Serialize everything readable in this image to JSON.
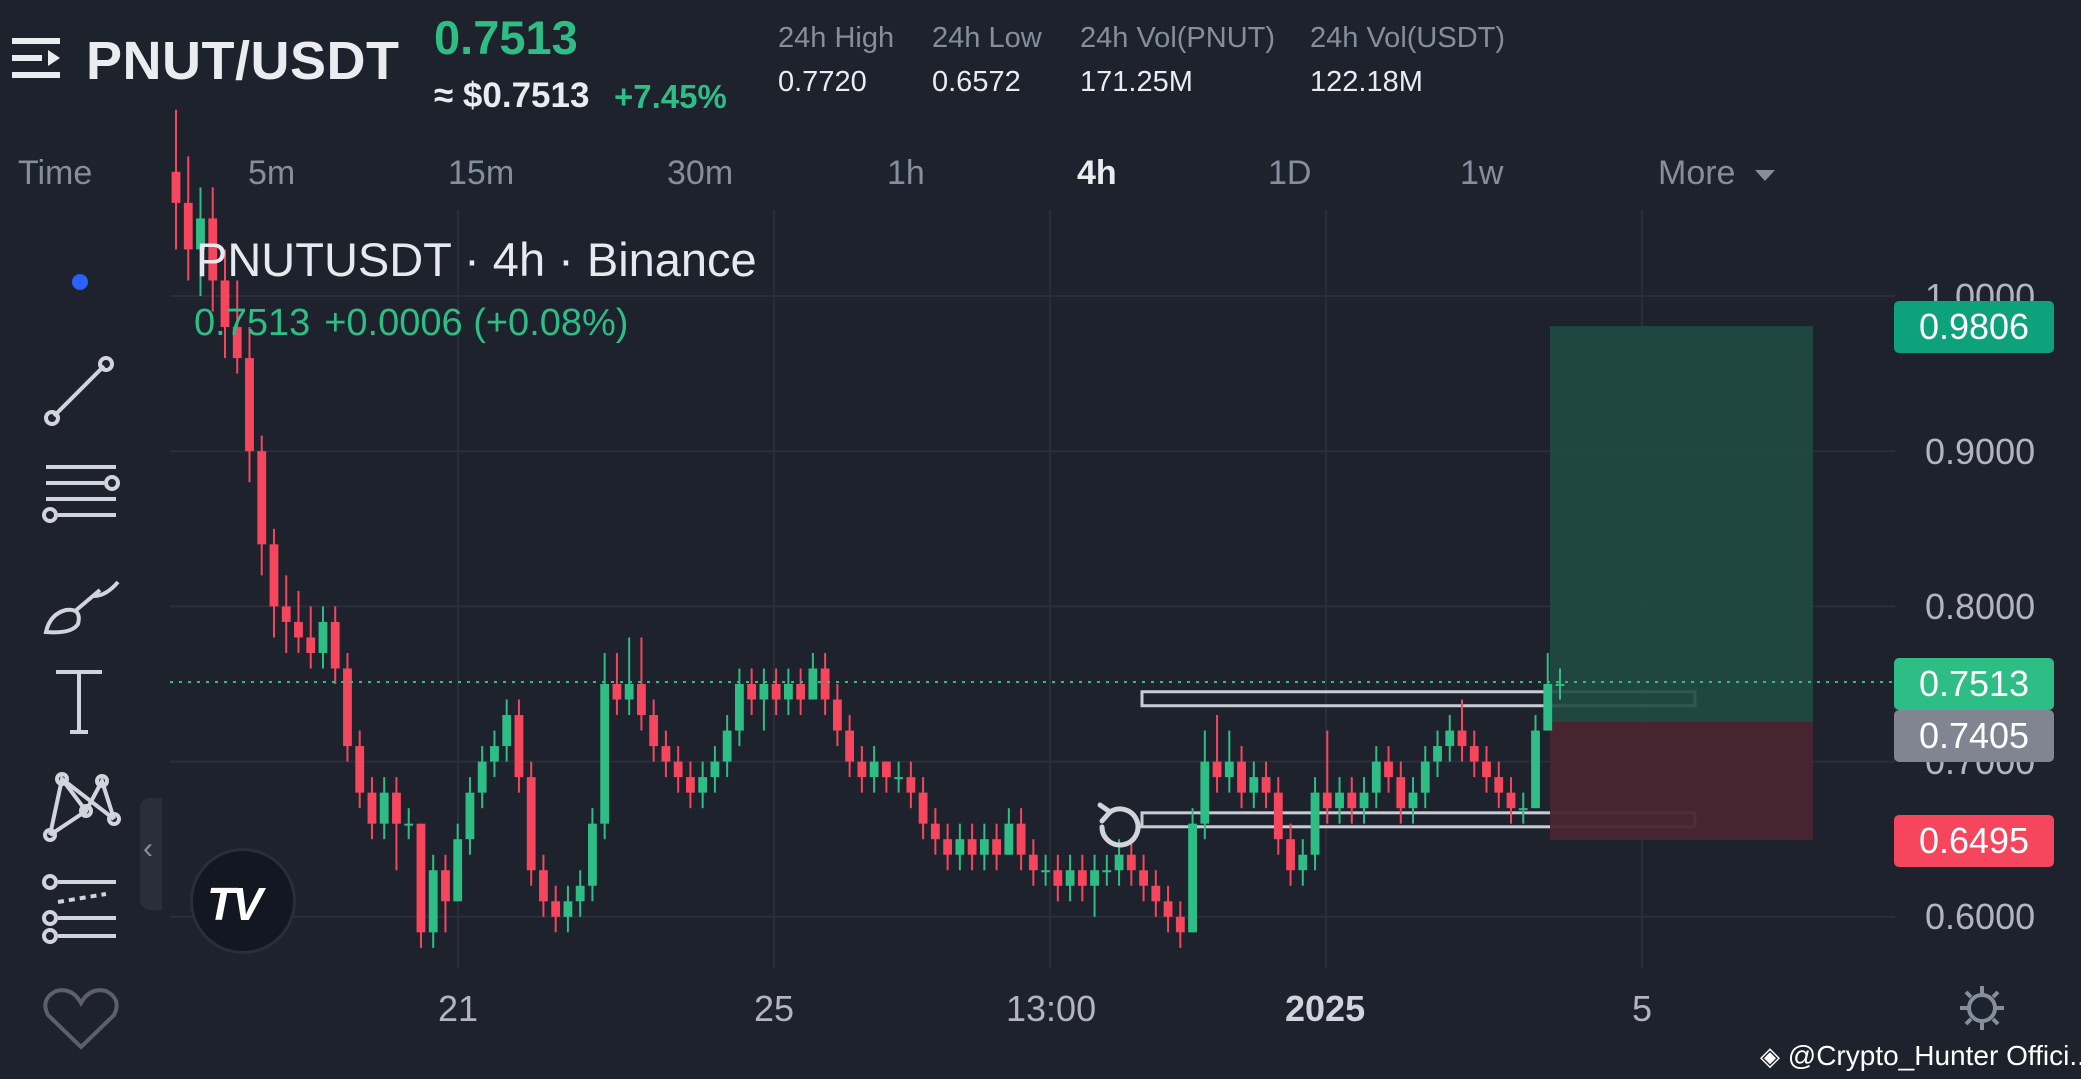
{
  "header": {
    "pair": "PNUT/USDT",
    "last_price": "0.7513",
    "usd_price": "≈ $0.7513",
    "change_pct": "+7.45%",
    "stats": [
      {
        "label": "24h High",
        "value": "0.7720"
      },
      {
        "label": "24h Low",
        "value": "0.6572"
      },
      {
        "label": "24h Vol(PNUT)",
        "value": "171.25M"
      },
      {
        "label": "24h Vol(USDT)",
        "value": "122.18M"
      }
    ]
  },
  "timeframes": [
    "Time",
    "5m",
    "15m",
    "30m",
    "1h",
    "4h",
    "1D",
    "1w",
    "More"
  ],
  "active_timeframe": "4h",
  "toolbar": {
    "icons": [
      "dot-indicator-icon",
      "trend-line-icon",
      "horizontal-lines-icon",
      "brush-icon",
      "text-icon",
      "pattern-icon",
      "fib-lines-icon",
      "favorites-heart-icon"
    ]
  },
  "chart": {
    "title": "PNUTUSDT · 4h · Binance",
    "ohlc_price": "0.7513",
    "ohlc_change": "+0.0006 (+0.08%)",
    "price_axis": [
      "1.0000",
      "0.9000",
      "0.8000",
      "0.7000",
      "0.6000"
    ],
    "time_axis": [
      "21",
      "25",
      "13:00",
      "2025",
      "5"
    ],
    "price_tags": {
      "target": "0.9806",
      "current": "0.7513",
      "entry": "0.7405",
      "stop": "0.6495"
    },
    "colors": {
      "up": "#2ebd85",
      "down": "#f6465d",
      "background": "#1e222d",
      "accent": "#2962ff"
    },
    "watermark": "@Crypto_Hunter Offici..."
  },
  "chart_data": {
    "type": "candlestick",
    "title": "PNUTUSDT · 4h · Binance",
    "ylim": [
      0.57,
      1.04
    ],
    "x_ticks": [
      "21",
      "25",
      "13:00",
      "2025",
      "5"
    ],
    "candles": [
      [
        1.08,
        1.06,
        1.12,
        1.03
      ],
      [
        1.06,
        1.03,
        1.09,
        1.01
      ],
      [
        1.03,
        1.05,
        1.07,
        1.0
      ],
      [
        1.05,
        1.01,
        1.07,
        0.99
      ],
      [
        1.01,
        0.98,
        1.03,
        0.96
      ],
      [
        0.98,
        0.96,
        1.01,
        0.95
      ],
      [
        0.96,
        0.9,
        0.98,
        0.88
      ],
      [
        0.9,
        0.84,
        0.91,
        0.82
      ],
      [
        0.84,
        0.8,
        0.85,
        0.78
      ],
      [
        0.8,
        0.79,
        0.82,
        0.77
      ],
      [
        0.79,
        0.78,
        0.81,
        0.77
      ],
      [
        0.78,
        0.77,
        0.8,
        0.76
      ],
      [
        0.77,
        0.79,
        0.8,
        0.76
      ],
      [
        0.79,
        0.76,
        0.8,
        0.75
      ],
      [
        0.76,
        0.71,
        0.77,
        0.7
      ],
      [
        0.71,
        0.68,
        0.72,
        0.67
      ],
      [
        0.68,
        0.66,
        0.69,
        0.65
      ],
      [
        0.66,
        0.68,
        0.69,
        0.65
      ],
      [
        0.68,
        0.66,
        0.69,
        0.63
      ],
      [
        0.66,
        0.66,
        0.67,
        0.65
      ],
      [
        0.66,
        0.59,
        0.66,
        0.58
      ],
      [
        0.59,
        0.63,
        0.64,
        0.58
      ],
      [
        0.63,
        0.61,
        0.64,
        0.59
      ],
      [
        0.61,
        0.65,
        0.66,
        0.61
      ],
      [
        0.65,
        0.68,
        0.69,
        0.64
      ],
      [
        0.68,
        0.7,
        0.71,
        0.67
      ],
      [
        0.7,
        0.71,
        0.72,
        0.69
      ],
      [
        0.71,
        0.73,
        0.74,
        0.7
      ],
      [
        0.73,
        0.69,
        0.74,
        0.68
      ],
      [
        0.69,
        0.63,
        0.7,
        0.62
      ],
      [
        0.63,
        0.61,
        0.64,
        0.6
      ],
      [
        0.61,
        0.6,
        0.62,
        0.59
      ],
      [
        0.6,
        0.61,
        0.62,
        0.59
      ],
      [
        0.61,
        0.62,
        0.63,
        0.6
      ],
      [
        0.62,
        0.66,
        0.67,
        0.61
      ],
      [
        0.66,
        0.75,
        0.77,
        0.65
      ],
      [
        0.75,
        0.74,
        0.77,
        0.73
      ],
      [
        0.74,
        0.75,
        0.78,
        0.73
      ],
      [
        0.75,
        0.73,
        0.78,
        0.72
      ],
      [
        0.73,
        0.71,
        0.74,
        0.7
      ],
      [
        0.71,
        0.7,
        0.72,
        0.69
      ],
      [
        0.7,
        0.69,
        0.71,
        0.68
      ],
      [
        0.69,
        0.68,
        0.7,
        0.67
      ],
      [
        0.68,
        0.69,
        0.7,
        0.67
      ],
      [
        0.69,
        0.7,
        0.71,
        0.68
      ],
      [
        0.7,
        0.72,
        0.73,
        0.69
      ],
      [
        0.72,
        0.75,
        0.76,
        0.71
      ],
      [
        0.75,
        0.74,
        0.76,
        0.73
      ],
      [
        0.74,
        0.75,
        0.76,
        0.72
      ],
      [
        0.75,
        0.74,
        0.76,
        0.73
      ],
      [
        0.74,
        0.75,
        0.76,
        0.73
      ],
      [
        0.75,
        0.74,
        0.76,
        0.73
      ],
      [
        0.74,
        0.76,
        0.77,
        0.74
      ],
      [
        0.76,
        0.74,
        0.77,
        0.73
      ],
      [
        0.74,
        0.72,
        0.75,
        0.71
      ],
      [
        0.72,
        0.7,
        0.73,
        0.69
      ],
      [
        0.7,
        0.69,
        0.71,
        0.68
      ],
      [
        0.69,
        0.7,
        0.71,
        0.68
      ],
      [
        0.7,
        0.69,
        0.7,
        0.68
      ],
      [
        0.69,
        0.69,
        0.7,
        0.68
      ],
      [
        0.69,
        0.68,
        0.7,
        0.67
      ],
      [
        0.68,
        0.66,
        0.69,
        0.65
      ],
      [
        0.66,
        0.65,
        0.67,
        0.64
      ],
      [
        0.65,
        0.64,
        0.66,
        0.63
      ],
      [
        0.64,
        0.65,
        0.66,
        0.63
      ],
      [
        0.65,
        0.64,
        0.66,
        0.63
      ],
      [
        0.64,
        0.65,
        0.66,
        0.63
      ],
      [
        0.65,
        0.64,
        0.66,
        0.63
      ],
      [
        0.64,
        0.66,
        0.67,
        0.64
      ],
      [
        0.66,
        0.64,
        0.67,
        0.63
      ],
      [
        0.64,
        0.63,
        0.65,
        0.62
      ],
      [
        0.63,
        0.63,
        0.64,
        0.62
      ],
      [
        0.63,
        0.62,
        0.64,
        0.61
      ],
      [
        0.62,
        0.63,
        0.64,
        0.61
      ],
      [
        0.63,
        0.62,
        0.64,
        0.61
      ],
      [
        0.62,
        0.63,
        0.64,
        0.6
      ],
      [
        0.63,
        0.63,
        0.64,
        0.62
      ],
      [
        0.63,
        0.64,
        0.65,
        0.62
      ],
      [
        0.64,
        0.63,
        0.65,
        0.62
      ],
      [
        0.63,
        0.62,
        0.64,
        0.61
      ],
      [
        0.62,
        0.61,
        0.63,
        0.6
      ],
      [
        0.61,
        0.6,
        0.62,
        0.59
      ],
      [
        0.6,
        0.59,
        0.61,
        0.58
      ],
      [
        0.59,
        0.66,
        0.67,
        0.59
      ],
      [
        0.66,
        0.7,
        0.72,
        0.65
      ],
      [
        0.7,
        0.69,
        0.73,
        0.68
      ],
      [
        0.69,
        0.7,
        0.72,
        0.68
      ],
      [
        0.7,
        0.68,
        0.71,
        0.67
      ],
      [
        0.68,
        0.69,
        0.7,
        0.67
      ],
      [
        0.69,
        0.68,
        0.7,
        0.67
      ],
      [
        0.68,
        0.65,
        0.69,
        0.64
      ],
      [
        0.65,
        0.63,
        0.66,
        0.62
      ],
      [
        0.63,
        0.64,
        0.65,
        0.62
      ],
      [
        0.64,
        0.68,
        0.69,
        0.63
      ],
      [
        0.68,
        0.67,
        0.72,
        0.66
      ],
      [
        0.67,
        0.68,
        0.69,
        0.66
      ],
      [
        0.68,
        0.67,
        0.69,
        0.66
      ],
      [
        0.67,
        0.68,
        0.69,
        0.66
      ],
      [
        0.68,
        0.7,
        0.71,
        0.67
      ],
      [
        0.7,
        0.69,
        0.71,
        0.68
      ],
      [
        0.69,
        0.67,
        0.7,
        0.66
      ],
      [
        0.67,
        0.68,
        0.69,
        0.66
      ],
      [
        0.68,
        0.7,
        0.71,
        0.67
      ],
      [
        0.7,
        0.71,
        0.72,
        0.69
      ],
      [
        0.71,
        0.72,
        0.73,
        0.7
      ],
      [
        0.72,
        0.71,
        0.74,
        0.7
      ],
      [
        0.71,
        0.7,
        0.72,
        0.69
      ],
      [
        0.7,
        0.69,
        0.71,
        0.68
      ],
      [
        0.69,
        0.68,
        0.7,
        0.67
      ],
      [
        0.68,
        0.67,
        0.69,
        0.66
      ],
      [
        0.67,
        0.67,
        0.68,
        0.66
      ],
      [
        0.67,
        0.72,
        0.73,
        0.67
      ],
      [
        0.72,
        0.75,
        0.77,
        0.72
      ],
      [
        0.75,
        0.75,
        0.76,
        0.74
      ]
    ],
    "levels": {
      "target": 0.9806,
      "current": 0.7513,
      "entry": 0.7405,
      "stop": 0.6495
    },
    "zones": [
      {
        "low": 0.736,
        "high": 0.745
      },
      {
        "low": 0.658,
        "high": 0.667
      }
    ]
  }
}
